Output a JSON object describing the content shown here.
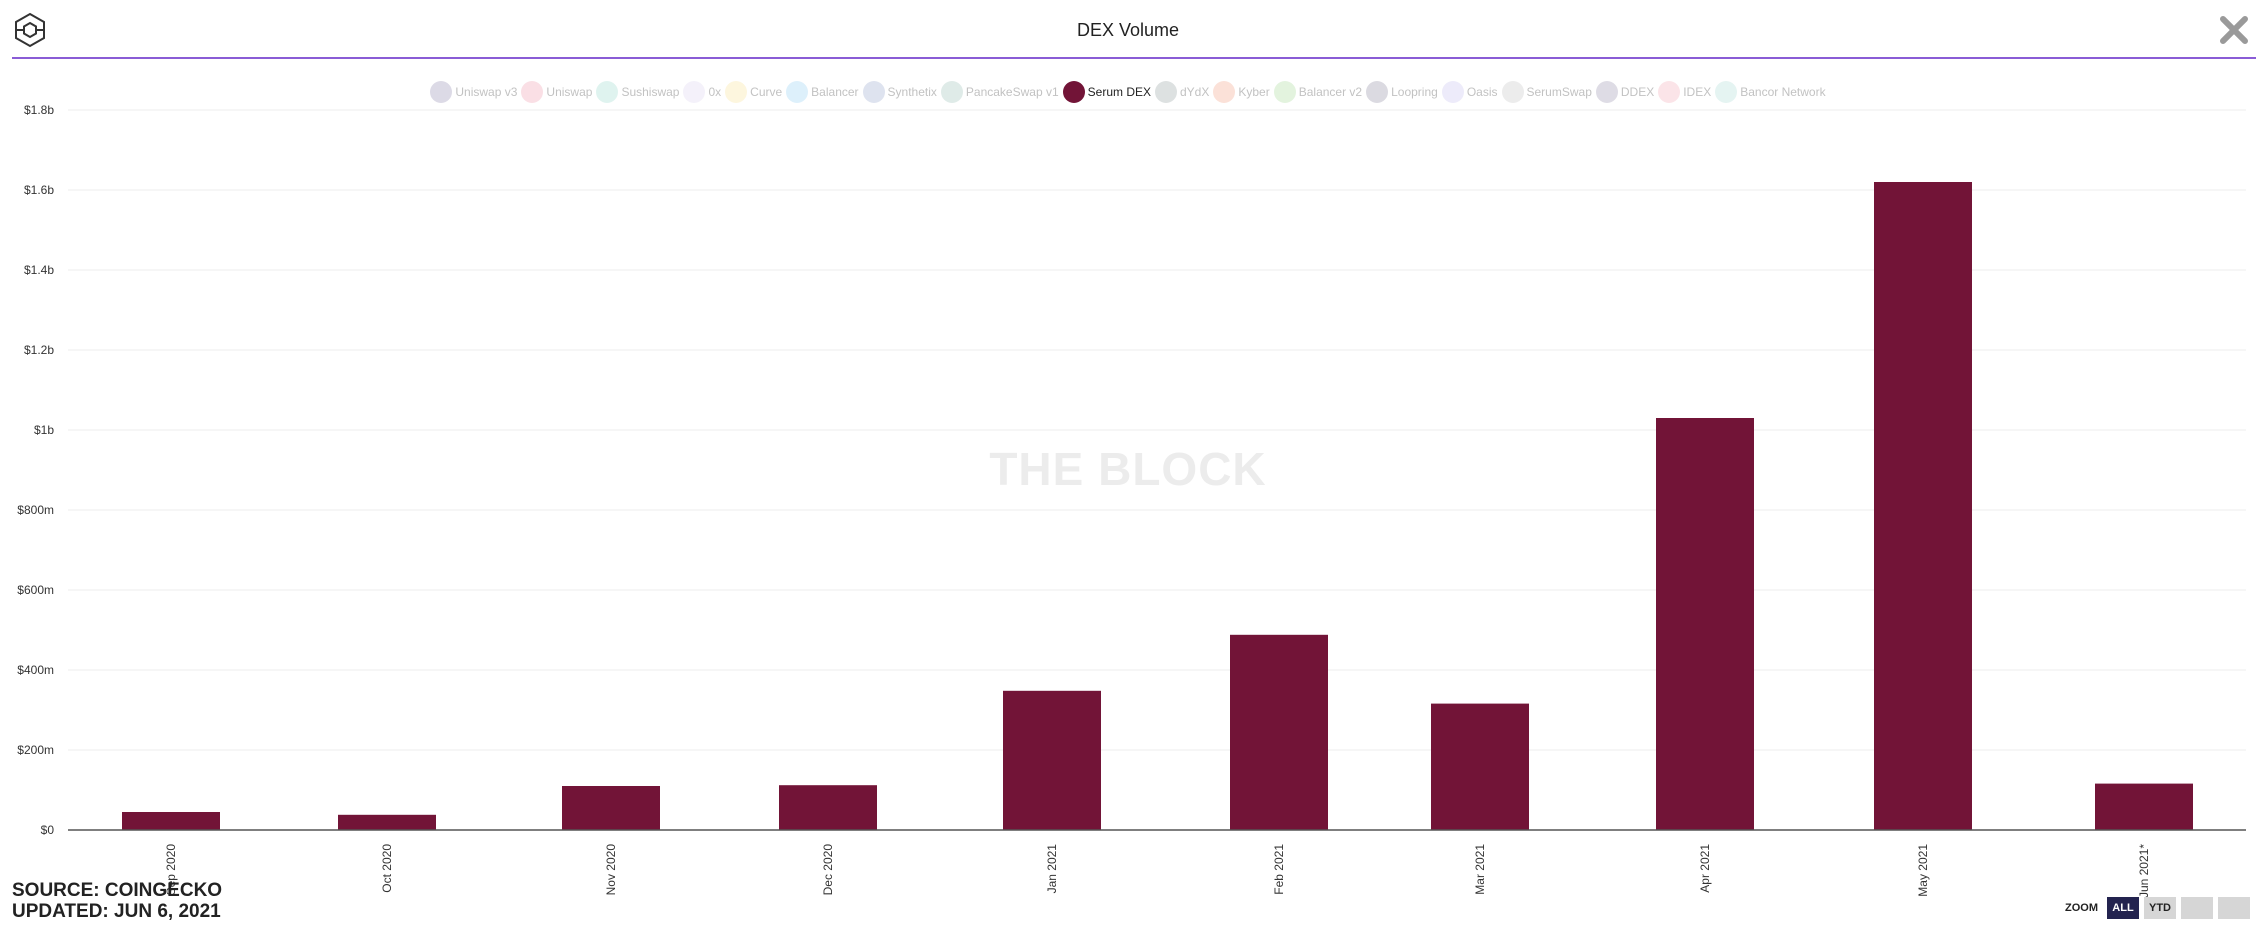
{
  "header": {
    "title": "DEX Volume",
    "logo_icon": "cube-logo-icon",
    "close_icon": "close-icon"
  },
  "legend": {
    "items": [
      {
        "label": "Uniswap v3",
        "color": "#b2aec7",
        "active": false
      },
      {
        "label": "Uniswap",
        "color": "#f4b8c5",
        "active": false
      },
      {
        "label": "Sushiswap",
        "color": "#b8e4dc",
        "active": false
      },
      {
        "label": "0x",
        "color": "#e6e0f3",
        "active": false
      },
      {
        "label": "Curve",
        "color": "#fbeab6",
        "active": false
      },
      {
        "label": "Balancer",
        "color": "#b3ddf6",
        "active": false
      },
      {
        "label": "Synthetix",
        "color": "#b6c2dc",
        "active": false
      },
      {
        "label": "PancakeSwap v1",
        "color": "#b8d2cc",
        "active": false
      },
      {
        "label": "Serum DEX",
        "color": "#721437",
        "active": true
      },
      {
        "label": "dYdX",
        "color": "#b4bcbc",
        "active": false
      },
      {
        "label": "Kyber",
        "color": "#f6bca8",
        "active": false
      },
      {
        "label": "Balancer v2",
        "color": "#c2e4b6",
        "active": false
      },
      {
        "label": "Loopring",
        "color": "#b0aebc",
        "active": false
      },
      {
        "label": "Oasis",
        "color": "#d8d2f3",
        "active": false
      },
      {
        "label": "SerumSwap",
        "color": "#d4d4d4",
        "active": false
      },
      {
        "label": "DDEX",
        "color": "#b6b2c6",
        "active": false
      },
      {
        "label": "IDEX",
        "color": "#f6c4cc",
        "active": false
      },
      {
        "label": "Bancor Network",
        "color": "#c6e6e2",
        "active": false
      }
    ]
  },
  "watermark": "THE BLOCK",
  "footer": {
    "source": "SOURCE: COINGECKO",
    "updated": "UPDATED: JUN 6, 2021"
  },
  "zoom": {
    "label": "ZOOM",
    "buttons": [
      {
        "label": "ALL",
        "active": true
      },
      {
        "label": "YTD",
        "active": false
      },
      {
        "label": "",
        "active": false
      },
      {
        "label": "",
        "active": false
      }
    ]
  },
  "chart_data": {
    "type": "bar",
    "title": "DEX Volume",
    "categories": [
      "Sep 2020",
      "Oct 2020",
      "Nov 2020",
      "Dec 2020",
      "Jan 2021",
      "Feb 2021",
      "Mar 2021",
      "Apr 2021",
      "May 2021",
      "Jun 2021*"
    ],
    "series": [
      {
        "name": "Serum DEX",
        "color": "#721437",
        "values": [
          45000000,
          38000000,
          110000000,
          112000000,
          348000000,
          488000000,
          316000000,
          1030000000,
          1620000000,
          116000000
        ]
      }
    ],
    "yticks": [
      0,
      200000000,
      400000000,
      600000000,
      800000000,
      1000000000,
      1200000000,
      1400000000,
      1600000000,
      1800000000
    ],
    "ytick_labels": [
      "$0",
      "$200m",
      "$400m",
      "$600m",
      "$800m",
      "$1b",
      "$1.2b",
      "$1.4b",
      "$1.6b",
      "$1.8b"
    ],
    "ylim": [
      0,
      1800000000
    ],
    "xlabel": "",
    "ylabel": "",
    "grid": true,
    "legend_position": "top-center"
  }
}
